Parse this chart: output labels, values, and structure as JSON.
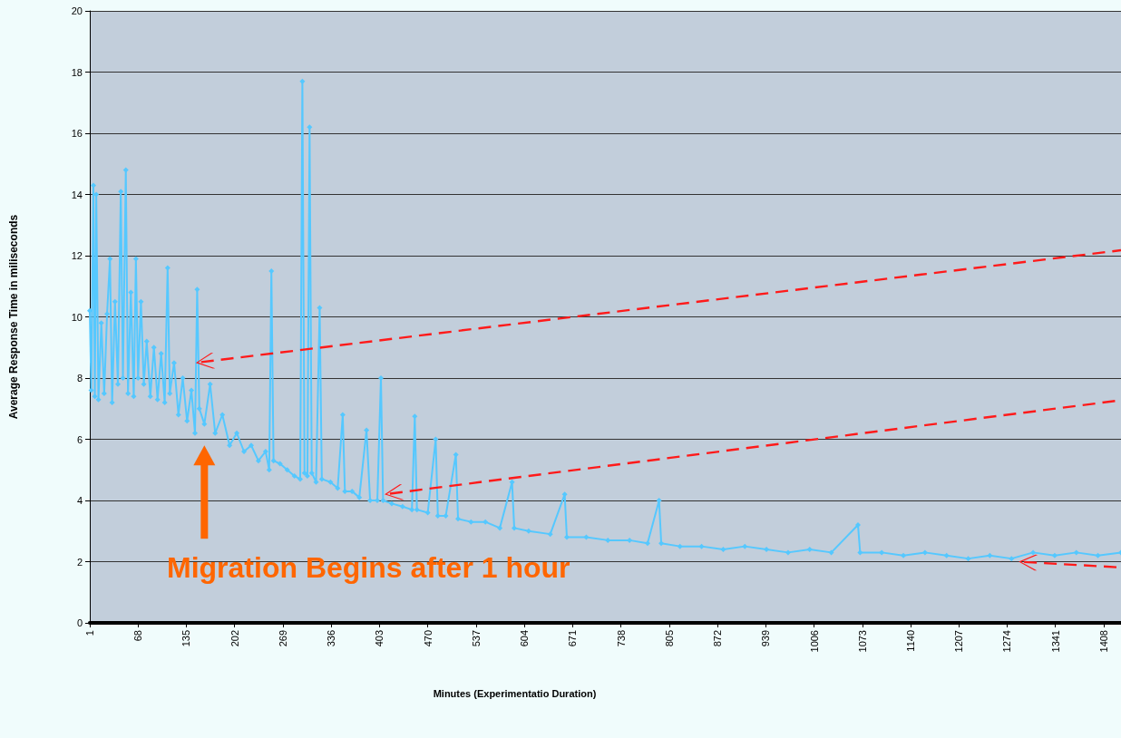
{
  "chart_data": {
    "type": "line",
    "xlabel": "Minutes (Experimentatio Duration)",
    "ylabel": "Average Response Time in miliseconds",
    "annotations": [
      "Migration Begins after 1 hour"
    ],
    "x": [
      1,
      3,
      6,
      8,
      10,
      13,
      17,
      21,
      25,
      29,
      32,
      36,
      40,
      44,
      47,
      51,
      54,
      58,
      62,
      65,
      68,
      72,
      76,
      80,
      85,
      90,
      95,
      100,
      105,
      109,
      112,
      118,
      124,
      130,
      136,
      142,
      147,
      150,
      153,
      160,
      168,
      175,
      185,
      195,
      205,
      215,
      225,
      235,
      245,
      250,
      253,
      256,
      265,
      275,
      285,
      293,
      296,
      299,
      303,
      306,
      309,
      315,
      320,
      323,
      335,
      345,
      352,
      355,
      365,
      375,
      385,
      390,
      400,
      405,
      408,
      420,
      435,
      448,
      452,
      455,
      470,
      481,
      484,
      495,
      509,
      512,
      530,
      550,
      570,
      587,
      590,
      610,
      640,
      660,
      663,
      690,
      720,
      750,
      775,
      791,
      794,
      820,
      850,
      880,
      910,
      940,
      970,
      1000,
      1030,
      1067,
      1070,
      1100,
      1130,
      1160,
      1190,
      1220,
      1250,
      1280,
      1310,
      1340,
      1370,
      1400,
      1432
    ],
    "series": [
      {
        "color": "#55c8ff",
        "values": [
          10.2,
          7.6,
          14.3,
          7.4,
          14.0,
          7.3,
          9.8,
          7.5,
          10.1,
          11.9,
          7.2,
          10.5,
          7.8,
          14.1,
          8.0,
          14.8,
          7.5,
          10.8,
          7.4,
          11.9,
          8.0,
          10.5,
          7.8,
          9.2,
          7.4,
          9.0,
          7.3,
          8.8,
          7.2,
          11.6,
          7.5,
          8.5,
          6.8,
          8.0,
          6.6,
          7.6,
          6.2,
          10.9,
          7.0,
          6.5,
          7.8,
          6.2,
          6.8,
          5.8,
          6.2,
          5.6,
          5.8,
          5.3,
          5.6,
          5.0,
          11.5,
          5.3,
          5.2,
          5.0,
          4.8,
          4.7,
          17.7,
          4.9,
          4.8,
          16.2,
          4.9,
          4.6,
          10.3,
          4.7,
          4.6,
          4.4,
          6.8,
          4.3,
          4.3,
          4.1,
          6.3,
          4.0,
          4.0,
          8.0,
          4.0,
          3.9,
          3.8,
          3.7,
          6.75,
          3.7,
          3.6,
          6.0,
          3.5,
          3.5,
          5.5,
          3.4,
          3.3,
          3.3,
          3.1,
          4.6,
          3.1,
          3.0,
          2.9,
          4.2,
          2.8,
          2.8,
          2.7,
          2.7,
          2.6,
          4.0,
          2.6,
          2.5,
          2.5,
          2.4,
          2.5,
          2.4,
          2.3,
          2.4,
          2.3,
          3.2,
          2.3,
          2.3,
          2.2,
          2.3,
          2.2,
          2.1,
          2.2,
          2.1,
          2.3,
          2.2,
          2.3,
          2.2,
          2.3
        ]
      }
    ],
    "xlim": [
      1,
      1432
    ],
    "xticks": [
      1,
      68,
      135,
      202,
      269,
      336,
      403,
      470,
      537,
      604,
      671,
      738,
      805,
      872,
      939,
      1006,
      1073,
      1140,
      1207,
      1274,
      1341,
      1408
    ],
    "ylim": [
      0,
      20
    ],
    "yticks": [
      0,
      2,
      4,
      6,
      8,
      10,
      12,
      14,
      16,
      18,
      20
    ],
    "grid": "y",
    "marker": "diamond",
    "line_style": "solid"
  }
}
